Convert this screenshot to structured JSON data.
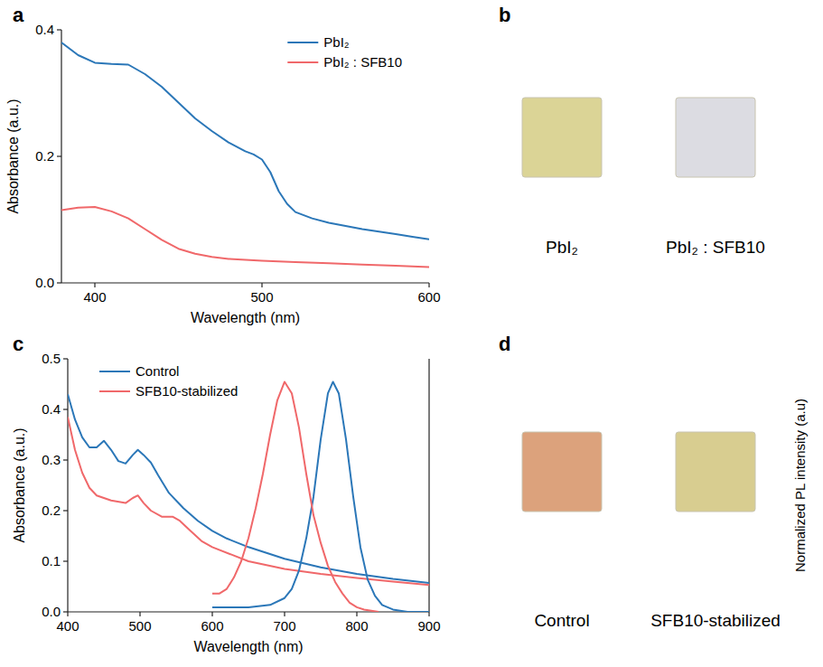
{
  "chart_data": [
    {
      "type": "line",
      "panel_label": "a",
      "x_label": "Wavelength (nm)",
      "y_label": "Absorbance (a.u.)",
      "xlim": [
        380,
        600
      ],
      "xticks": [
        400,
        500,
        600
      ],
      "ylim": [
        0,
        0.4
      ],
      "yticks": [
        {
          "value": 0,
          "label": "0.0"
        },
        0.2,
        0.4
      ],
      "legend": "top-right",
      "series": [
        {
          "name": "PbI₂",
          "color": "#2b77b8",
          "x": [
            380,
            390,
            400,
            410,
            420,
            430,
            440,
            450,
            460,
            470,
            480,
            490,
            495,
            500,
            505,
            510,
            515,
            520,
            530,
            540,
            550,
            560,
            570,
            580,
            590,
            600
          ],
          "values": [
            0.38,
            0.36,
            0.348,
            0.346,
            0.345,
            0.33,
            0.31,
            0.285,
            0.26,
            0.24,
            0.222,
            0.208,
            0.203,
            0.195,
            0.175,
            0.145,
            0.125,
            0.112,
            0.102,
            0.095,
            0.09,
            0.085,
            0.081,
            0.077,
            0.073,
            0.069
          ]
        },
        {
          "name": "PbI₂ : SFB10",
          "color": "#f0686a",
          "x": [
            380,
            390,
            400,
            410,
            420,
            430,
            440,
            450,
            460,
            470,
            480,
            500,
            520,
            540,
            560,
            580,
            600
          ],
          "values": [
            0.115,
            0.119,
            0.12,
            0.113,
            0.102,
            0.085,
            0.068,
            0.054,
            0.046,
            0.041,
            0.038,
            0.035,
            0.033,
            0.031,
            0.029,
            0.027,
            0.025
          ]
        }
      ]
    },
    {
      "type": "line",
      "panel_label": "c",
      "x_label": "Wavelength (nm)",
      "y_label": "Absorbance (a.u.)",
      "y2_label": "Normalized PL intensity (a.u)",
      "xlim": [
        400,
        900
      ],
      "xticks": [
        400,
        500,
        600,
        700,
        800,
        900
      ],
      "ylim": [
        0,
        0.5
      ],
      "yticks": [
        {
          "value": 0,
          "label": "0.0"
        },
        0.1,
        0.2,
        0.3,
        0.4,
        0.5
      ],
      "y2lim": [
        0,
        1.1
      ],
      "y2ticks": [],
      "legend": "top-left",
      "series": [
        {
          "name": "Control",
          "color": "#2b77b8",
          "x": [
            400,
            410,
            420,
            430,
            440,
            450,
            460,
            470,
            480,
            490,
            497,
            505,
            515,
            525,
            540,
            560,
            580,
            600,
            620,
            650,
            700,
            750,
            800,
            850,
            900
          ],
          "values": [
            0.43,
            0.38,
            0.345,
            0.325,
            0.325,
            0.338,
            0.32,
            0.298,
            0.293,
            0.31,
            0.32,
            0.31,
            0.295,
            0.27,
            0.235,
            0.205,
            0.18,
            0.16,
            0.145,
            0.128,
            0.105,
            0.088,
            0.075,
            0.065,
            0.057
          ]
        },
        {
          "name": "SFB10-stabilized",
          "color": "#f0686a",
          "x": [
            400,
            410,
            420,
            430,
            440,
            460,
            480,
            490,
            497,
            505,
            515,
            530,
            545,
            555,
            570,
            585,
            600,
            650,
            700,
            750,
            800,
            850,
            900
          ],
          "values": [
            0.385,
            0.32,
            0.275,
            0.245,
            0.23,
            0.22,
            0.215,
            0.225,
            0.23,
            0.215,
            0.2,
            0.188,
            0.188,
            0.18,
            0.16,
            0.14,
            0.128,
            0.1,
            0.085,
            0.075,
            0.067,
            0.06,
            0.053
          ]
        },
        {
          "name": "Control",
          "color": "#2b77b8",
          "axis": "y2",
          "x": [
            600,
            650,
            680,
            700,
            710,
            720,
            730,
            740,
            750,
            760,
            767,
            775,
            785,
            795,
            805,
            815,
            825,
            835,
            850,
            870,
            900
          ],
          "values": [
            0.02,
            0.02,
            0.03,
            0.06,
            0.1,
            0.18,
            0.32,
            0.5,
            0.75,
            0.95,
            1.0,
            0.95,
            0.75,
            0.5,
            0.28,
            0.14,
            0.07,
            0.03,
            0.01,
            0,
            0
          ]
        },
        {
          "name": "SFB10-stabilized",
          "color": "#f0686a",
          "axis": "y2",
          "x": [
            600,
            610,
            620,
            630,
            640,
            650,
            660,
            670,
            680,
            690,
            700,
            710,
            720,
            730,
            740,
            750,
            760,
            770,
            780,
            790,
            800,
            810,
            820,
            830
          ],
          "values": [
            0.08,
            0.08,
            0.1,
            0.15,
            0.22,
            0.32,
            0.45,
            0.6,
            0.77,
            0.92,
            1.0,
            0.95,
            0.8,
            0.6,
            0.42,
            0.3,
            0.2,
            0.13,
            0.08,
            0.04,
            0.02,
            0.01,
            0.005,
            0
          ]
        }
      ]
    }
  ],
  "photo_panels": [
    {
      "panel_label": "b",
      "items": [
        {
          "label": "PbI₂",
          "color": "#dbd496"
        },
        {
          "label": "PbI₂ : SFB10",
          "color": "#dcdce2"
        }
      ]
    },
    {
      "panel_label": "d",
      "items": [
        {
          "label": "Control",
          "color": "#dca27c"
        },
        {
          "label": "SFB10-stabilized",
          "color": "#d8cd90"
        }
      ]
    }
  ]
}
